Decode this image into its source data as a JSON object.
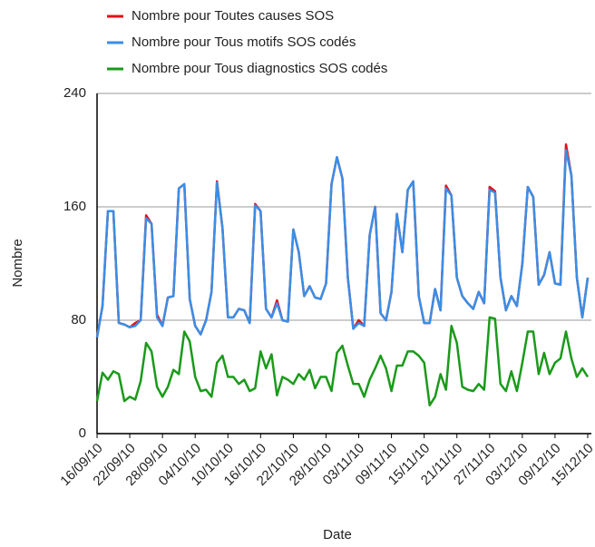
{
  "chart_data": {
    "type": "line",
    "xlabel": "Date",
    "ylabel": "Nombre",
    "categories": [
      "16/09/10",
      null,
      null,
      null,
      null,
      null,
      "22/09/10",
      null,
      null,
      null,
      null,
      null,
      "28/09/10",
      null,
      null,
      null,
      null,
      null,
      "04/10/10",
      null,
      null,
      null,
      null,
      null,
      "10/10/10",
      null,
      null,
      null,
      null,
      null,
      "16/10/10",
      null,
      null,
      null,
      null,
      null,
      "22/10/10",
      null,
      null,
      null,
      null,
      null,
      "28/10/10",
      null,
      null,
      null,
      null,
      null,
      "03/11/10",
      null,
      null,
      null,
      null,
      null,
      "09/11/10",
      null,
      null,
      null,
      null,
      null,
      "15/11/10",
      null,
      null,
      null,
      null,
      null,
      "21/11/10",
      null,
      null,
      null,
      null,
      null,
      "27/11/10",
      null,
      null,
      null,
      null,
      null,
      "03/12/10",
      null,
      null,
      null,
      null,
      null,
      "09/12/10",
      null,
      null,
      null,
      null,
      null,
      "15/12/10"
    ],
    "series": [
      {
        "name": "Nombre pour Toutes causes SOS",
        "color": "#e0101a",
        "values": [
          68,
          90,
          157,
          157,
          78,
          77,
          75,
          78,
          80,
          154,
          148,
          84,
          76,
          96,
          97,
          173,
          176,
          95,
          76,
          70,
          80,
          100,
          178,
          145,
          82,
          82,
          88,
          87,
          78,
          162,
          157,
          88,
          82,
          94,
          80,
          79,
          144,
          128,
          97,
          104,
          96,
          95,
          106,
          176,
          195,
          180,
          110,
          74,
          80,
          76,
          140,
          160,
          85,
          80,
          100,
          155,
          128,
          172,
          178,
          97,
          78,
          78,
          102,
          87,
          175,
          168,
          110,
          97,
          92,
          88,
          100,
          92,
          174,
          171,
          110,
          87,
          97,
          90,
          120,
          174,
          167,
          105,
          112,
          128,
          106,
          105,
          204,
          182,
          110,
          82,
          110
        ]
      },
      {
        "name": "Nombre pour Tous motifs SOS codés",
        "color": "#3a8ee6",
        "values": [
          68,
          90,
          157,
          157,
          78,
          77,
          75,
          76,
          80,
          152,
          148,
          82,
          76,
          96,
          97,
          173,
          176,
          95,
          76,
          70,
          80,
          100,
          177,
          145,
          82,
          82,
          88,
          87,
          78,
          161,
          157,
          88,
          82,
          92,
          80,
          79,
          144,
          128,
          97,
          104,
          96,
          95,
          106,
          176,
          195,
          180,
          110,
          74,
          78,
          76,
          140,
          160,
          85,
          80,
          100,
          155,
          128,
          172,
          178,
          97,
          78,
          78,
          102,
          87,
          173,
          168,
          110,
          97,
          92,
          88,
          100,
          92,
          172,
          170,
          110,
          87,
          97,
          90,
          120,
          174,
          167,
          105,
          112,
          128,
          106,
          105,
          200,
          182,
          110,
          82,
          110
        ]
      },
      {
        "name": "Nombre pour Tous diagnostics SOS codés",
        "color": "#1a9a1a",
        "values": [
          23,
          43,
          38,
          44,
          42,
          23,
          26,
          24,
          37,
          64,
          58,
          33,
          26,
          33,
          45,
          42,
          72,
          65,
          40,
          30,
          31,
          26,
          50,
          55,
          40,
          40,
          35,
          38,
          30,
          32,
          58,
          46,
          56,
          27,
          40,
          38,
          35,
          42,
          38,
          45,
          32,
          40,
          40,
          30,
          57,
          62,
          48,
          35,
          35,
          26,
          38,
          46,
          55,
          46,
          30,
          48,
          48,
          58,
          58,
          55,
          50,
          20,
          26,
          42,
          31,
          76,
          64,
          33,
          31,
          30,
          35,
          31,
          82,
          81,
          35,
          30,
          44,
          30,
          50,
          72,
          72,
          42,
          57,
          42,
          50,
          53,
          72,
          53,
          40,
          46,
          40
        ]
      }
    ],
    "ylim": [
      0,
      240
    ],
    "yticks": [
      0,
      80,
      160,
      240
    ],
    "grid": true,
    "legend": "top"
  }
}
